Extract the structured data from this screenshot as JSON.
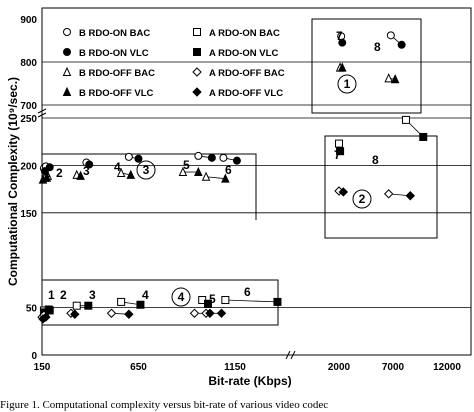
{
  "chart_data": {
    "type": "scatter",
    "ylabel": "Computational Complexity (10⁹/sec.)",
    "xlabel": "Bit-rate (Kbps)",
    "y_segments": [
      {
        "range": [
          700,
          900
        ],
        "ticks": [
          "700",
          "800",
          "900"
        ]
      },
      {
        "range": [
          0,
          250
        ],
        "ticks": [
          "0",
          "50",
          "150",
          "200",
          "250"
        ]
      }
    ],
    "x_segments": [
      {
        "range": [
          150,
          1550
        ],
        "ticks": [
          "150",
          "650",
          "1150"
        ]
      },
      {
        "range": [
          2000,
          12000
        ],
        "ticks": [
          "2000",
          "7000",
          "12000"
        ]
      }
    ],
    "legend": [
      {
        "key": "b-rdo-on-bac",
        "label": "B RDO-ON BAC",
        "marker": "circle-open"
      },
      {
        "key": "a-rdo-on-bac",
        "label": "A RDO-ON BAC",
        "marker": "square-open"
      },
      {
        "key": "b-rdo-on-vlc",
        "label": "B RDO-ON VLC",
        "marker": "circle-filled"
      },
      {
        "key": "a-rdo-on-vlc",
        "label": "A RDO-ON VLC",
        "marker": "square-filled"
      },
      {
        "key": "b-rdo-off-bac",
        "label": "B RDO-OFF BAC",
        "marker": "triangle-open"
      },
      {
        "key": "a-rdo-off-bac",
        "label": "A RDO-OFF BAC",
        "marker": "diamond-open"
      },
      {
        "key": "b-rdo-off-vlc",
        "label": "B RDO-OFF VLC",
        "marker": "triangle-filled"
      },
      {
        "key": "a-rdo-off-vlc",
        "label": "A RDO-OFF VLC",
        "marker": "diamond-filled"
      }
    ],
    "group_labels": [
      "1",
      "2",
      "3",
      "4",
      "5",
      "6",
      "7",
      "8"
    ],
    "region_labels": [
      "1",
      "2",
      "3",
      "4"
    ],
    "series": [
      {
        "key": "b-rdo-on-bac",
        "points": [
          {
            "x": 160,
            "y": 197
          },
          {
            "x": 170,
            "y": 199
          },
          {
            "x": 380,
            "y": 203
          },
          {
            "x": 600,
            "y": 209
          },
          {
            "x": 960,
            "y": 210
          },
          {
            "x": 1090,
            "y": 208
          },
          {
            "x": 2200,
            "y": 860
          },
          {
            "x": 6800,
            "y": 862
          }
        ]
      },
      {
        "key": "b-rdo-on-vlc",
        "points": [
          {
            "x": 165,
            "y": 194
          },
          {
            "x": 190,
            "y": 198
          },
          {
            "x": 395,
            "y": 201
          },
          {
            "x": 650,
            "y": 207
          },
          {
            "x": 1030,
            "y": 208
          },
          {
            "x": 1160,
            "y": 205
          },
          {
            "x": 2300,
            "y": 845
          },
          {
            "x": 7800,
            "y": 840
          }
        ]
      },
      {
        "key": "b-rdo-off-bac",
        "points": [
          {
            "x": 165,
            "y": 187
          },
          {
            "x": 180,
            "y": 189
          },
          {
            "x": 330,
            "y": 190
          },
          {
            "x": 560,
            "y": 192
          },
          {
            "x": 880,
            "y": 193
          },
          {
            "x": 1000,
            "y": 188
          },
          {
            "x": 2100,
            "y": 787
          },
          {
            "x": 6600,
            "y": 762
          }
        ]
      },
      {
        "key": "b-rdo-off-vlc",
        "points": [
          {
            "x": 155,
            "y": 185
          },
          {
            "x": 175,
            "y": 187
          },
          {
            "x": 350,
            "y": 189
          },
          {
            "x": 610,
            "y": 190
          },
          {
            "x": 960,
            "y": 193
          },
          {
            "x": 1100,
            "y": 186
          },
          {
            "x": 2300,
            "y": 787
          },
          {
            "x": 7200,
            "y": 760
          }
        ]
      },
      {
        "key": "a-rdo-on-bac",
        "points": [
          {
            "x": 160,
            "y": 47
          },
          {
            "x": 185,
            "y": 48
          },
          {
            "x": 330,
            "y": 52
          },
          {
            "x": 560,
            "y": 56
          },
          {
            "x": 980,
            "y": 58
          },
          {
            "x": 1100,
            "y": 58
          },
          {
            "x": 2000,
            "y": 223
          },
          {
            "x": 8200,
            "y": 248
          }
        ]
      },
      {
        "key": "a-rdo-on-vlc",
        "points": [
          {
            "x": 165,
            "y": 45
          },
          {
            "x": 190,
            "y": 47
          },
          {
            "x": 390,
            "y": 52
          },
          {
            "x": 660,
            "y": 53
          },
          {
            "x": 1010,
            "y": 54
          },
          {
            "x": 1370,
            "y": 56
          }
        ]
      },
      {
        "key": "a-rdo-on-vlc-upper",
        "points": [
          {
            "x": 2100,
            "y": 215
          },
          {
            "x": 9800,
            "y": 230
          }
        ]
      },
      {
        "key": "a-rdo-off-bac",
        "points": [
          {
            "x": 150,
            "y": 40
          },
          {
            "x": 160,
            "y": 42
          },
          {
            "x": 300,
            "y": 44
          },
          {
            "x": 510,
            "y": 44
          },
          {
            "x": 940,
            "y": 44
          },
          {
            "x": 1000,
            "y": 44
          },
          {
            "x": 2000,
            "y": 173
          },
          {
            "x": 6600,
            "y": 170
          }
        ]
      },
      {
        "key": "a-rdo-off-vlc",
        "points": [
          {
            "x": 155,
            "y": 38
          },
          {
            "x": 170,
            "y": 40
          },
          {
            "x": 320,
            "y": 43
          },
          {
            "x": 600,
            "y": 43
          },
          {
            "x": 1020,
            "y": 44
          },
          {
            "x": 1080,
            "y": 44
          },
          {
            "x": 2400,
            "y": 172
          },
          {
            "x": 8600,
            "y": 168
          }
        ]
      }
    ]
  },
  "caption": "Figure 1.   Computational complexity versus bit-rate of various video codec"
}
